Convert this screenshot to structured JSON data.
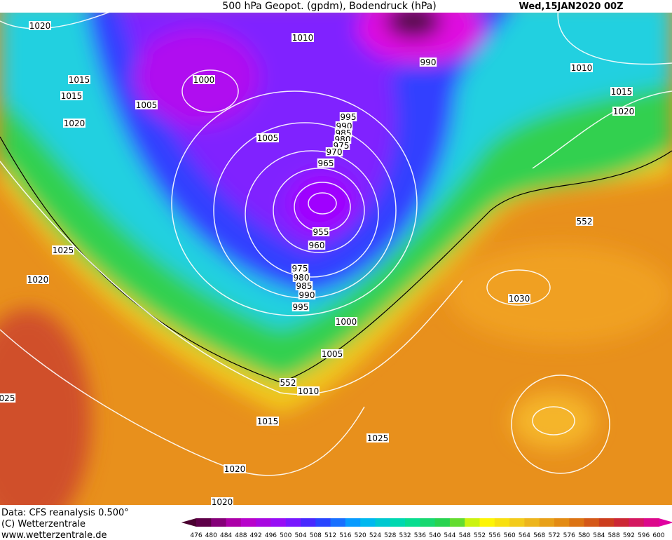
{
  "header": {
    "title": "500 hPa Geopot. (gpdm), Bodendruck (hPa)",
    "date": "Wed,15JAN2020 00Z"
  },
  "isobar_labels": [
    "1020",
    "1010",
    "990",
    "1010",
    "1015",
    "1000",
    "1015",
    "1015",
    "1005",
    "1020",
    "995",
    "1020",
    "990",
    "985",
    "980",
    "1005",
    "975",
    "970",
    "965",
    "552",
    "955",
    "960",
    "1025",
    "975",
    "980",
    "985",
    "990",
    "1020",
    "995",
    "1030",
    "1000",
    "1005",
    "552",
    "1010",
    "025",
    "1015",
    "1025",
    "1020",
    "1020"
  ],
  "footer": {
    "source": "Data: CFS reanalysis 0.500°",
    "copyright": "(C) Wetterzentrale",
    "url": "www.wetterzentrale.de"
  },
  "legend": {
    "labels": [
      476,
      480,
      484,
      488,
      492,
      496,
      500,
      504,
      508,
      512,
      516,
      520,
      524,
      528,
      532,
      536,
      540,
      544,
      548,
      552,
      556,
      560,
      564,
      568,
      572,
      576,
      580,
      584,
      588,
      592,
      596,
      600
    ]
  }
}
